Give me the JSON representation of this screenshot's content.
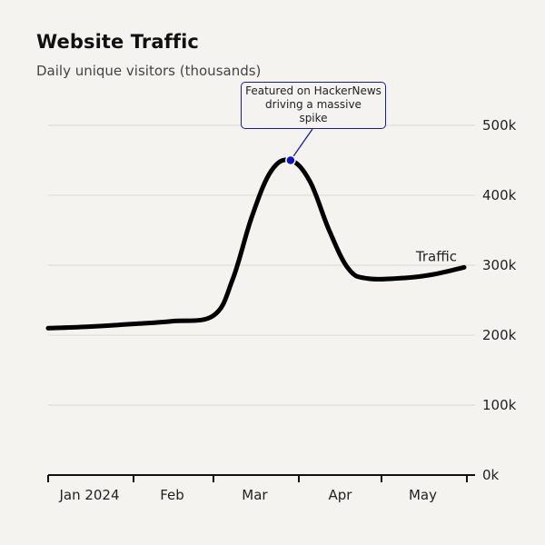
{
  "chart_data": {
    "type": "line",
    "title": "Website Traffic",
    "subtitle": "Daily unique visitors (thousands)",
    "xlabel": "",
    "ylabel": "",
    "x_tick_labels": [
      "Jan 2024",
      "Feb",
      "Mar",
      "Apr",
      "May"
    ],
    "y_tick_labels": [
      "0k",
      "100k",
      "200k",
      "300k",
      "400k",
      "500k"
    ],
    "ylim": [
      0,
      500
    ],
    "grid": true,
    "series": [
      {
        "name": "Traffic",
        "color": "#000000",
        "points": [
          {
            "x": "2024-01-01",
            "y": 210
          },
          {
            "x": "2024-01-15",
            "y": 212
          },
          {
            "x": "2024-02-01",
            "y": 216
          },
          {
            "x": "2024-02-15",
            "y": 220
          },
          {
            "x": "2024-03-01",
            "y": 228
          },
          {
            "x": "2024-03-08",
            "y": 280
          },
          {
            "x": "2024-03-15",
            "y": 370
          },
          {
            "x": "2024-03-22",
            "y": 435
          },
          {
            "x": "2024-03-29",
            "y": 450
          },
          {
            "x": "2024-04-05",
            "y": 420
          },
          {
            "x": "2024-04-12",
            "y": 350
          },
          {
            "x": "2024-04-19",
            "y": 295
          },
          {
            "x": "2024-04-26",
            "y": 281
          },
          {
            "x": "2024-05-10",
            "y": 282
          },
          {
            "x": "2024-05-20",
            "y": 287
          },
          {
            "x": "2024-05-31",
            "y": 297
          }
        ]
      }
    ],
    "annotation": {
      "text": "Featured on HackerNews driving a massive spike",
      "lines": [
        "Featured on HackerNews",
        "driving a massive",
        "spike"
      ],
      "x": "2024-03-29",
      "y": 450,
      "color": "#1a1aa8"
    }
  }
}
